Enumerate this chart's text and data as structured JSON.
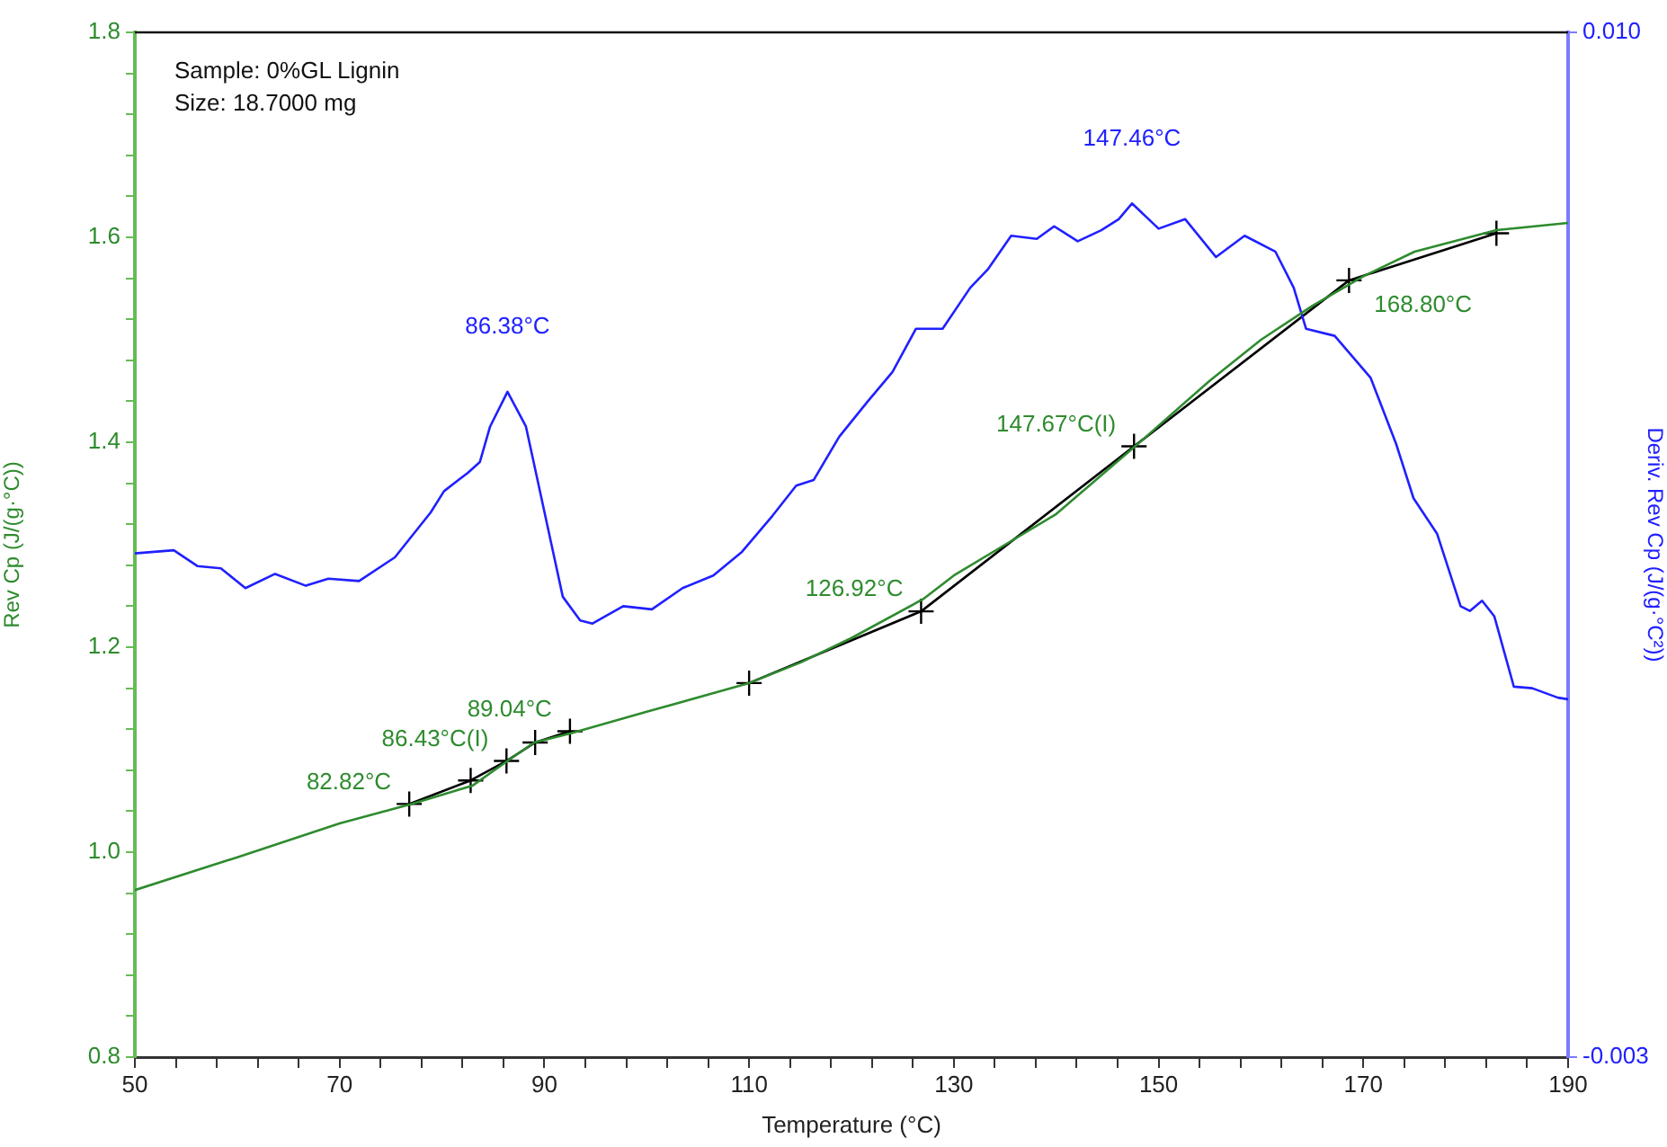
{
  "chart_data": {
    "type": "line",
    "xlabel": "Temperature (°C)",
    "ylabel": "Rev Cp (J/(g·°C))",
    "y2label": "Deriv. Rev Cp (J/(g·°C²))",
    "xlim": [
      50,
      190
    ],
    "xticks": [
      50,
      {
        "value": 54,
        "label": null
      },
      {
        "value": 58,
        "label": null
      },
      {
        "value": 62,
        "label": null
      },
      {
        "value": 66,
        "label": null
      },
      70,
      {
        "value": 74,
        "label": null
      },
      {
        "value": 78,
        "label": null
      },
      {
        "value": 82,
        "label": null
      },
      {
        "value": 86,
        "label": null
      },
      90,
      {
        "value": 94,
        "label": null
      },
      {
        "value": 98,
        "label": null
      },
      {
        "value": 102,
        "label": null
      },
      {
        "value": 106,
        "label": null
      },
      110,
      {
        "value": 114,
        "label": null
      },
      {
        "value": 118,
        "label": null
      },
      {
        "value": 122,
        "label": null
      },
      {
        "value": 126,
        "label": null
      },
      130,
      {
        "value": 134,
        "label": null
      },
      {
        "value": 138,
        "label": null
      },
      {
        "value": 142,
        "label": null
      },
      {
        "value": 146,
        "label": null
      },
      150,
      {
        "value": 154,
        "label": null
      },
      {
        "value": 158,
        "label": null
      },
      {
        "value": 162,
        "label": null
      },
      {
        "value": 166,
        "label": null
      },
      170,
      {
        "value": 174,
        "label": null
      },
      {
        "value": 178,
        "label": null
      },
      {
        "value": 182,
        "label": null
      },
      {
        "value": 186,
        "label": null
      },
      190
    ],
    "ylim": [
      0.8,
      1.8
    ],
    "yticks": [
      0.8,
      {
        "value": 0.84,
        "label": null
      },
      {
        "value": 0.88,
        "label": null
      },
      {
        "value": 0.92,
        "label": null
      },
      {
        "value": 0.96,
        "label": null
      },
      {
        "value": 1,
        "label": "1.0"
      },
      {
        "value": 1.04,
        "label": null
      },
      {
        "value": 1.08,
        "label": null
      },
      {
        "value": 1.12,
        "label": null
      },
      {
        "value": 1.16,
        "label": null
      },
      1.2,
      {
        "value": 1.24,
        "label": null
      },
      {
        "value": 1.28,
        "label": null
      },
      {
        "value": 1.32,
        "label": null
      },
      {
        "value": 1.36,
        "label": null
      },
      1.4,
      {
        "value": 1.44,
        "label": null
      },
      {
        "value": 1.48,
        "label": null
      },
      {
        "value": 1.52,
        "label": null
      },
      {
        "value": 1.56,
        "label": null
      },
      1.6,
      {
        "value": 1.64,
        "label": null
      },
      {
        "value": 1.68,
        "label": null
      },
      {
        "value": 1.72,
        "label": null
      },
      {
        "value": 1.76,
        "label": null
      },
      1.8
    ],
    "y2lim": [
      -0.003,
      0.01
    ],
    "y2ticks": [
      -0.003,
      {
        "value": 0.01,
        "label": "0.010"
      }
    ],
    "grid": false,
    "legend": false,
    "marker": "none",
    "line_style": "solid",
    "series": [
      {
        "color": "#2e8b2e",
        "x": [
          50,
          60,
          70,
          77,
          83,
          86.4,
          89,
          92.6,
          100,
          110,
          115,
          120,
          127,
          130,
          135,
          140,
          147.7,
          155,
          160,
          165,
          170,
          175,
          183,
          190
        ],
        "values": [
          0.963,
          0.995,
          1.028,
          1.047,
          1.065,
          1.089,
          1.107,
          1.116,
          1.137,
          1.165,
          1.185,
          1.209,
          1.247,
          1.27,
          1.3,
          1.33,
          1.396,
          1.46,
          1.5,
          1.533,
          1.562,
          1.586,
          1.607,
          1.614
        ]
      },
      {
        "color": "#2020ff",
        "axis": "y2",
        "x": [
          50,
          53.8,
          56.1,
          58.4,
          60.8,
          63.7,
          66.7,
          68.9,
          71.9,
          75.4,
          78.9,
          80.2,
          82.5,
          83.7,
          84.7,
          86.4,
          88.2,
          90.7,
          91.8,
          93.5,
          94.7,
          97.7,
          100.5,
          103.5,
          106.5,
          109.3,
          112.3,
          114.6,
          116.3,
          118.8,
          121.6,
          124,
          126.3,
          128.9,
          131.6,
          133.3,
          135.6,
          138.1,
          139.8,
          142.1,
          144.4,
          146.1,
          147.4,
          150,
          152.6,
          155.6,
          158.4,
          161.4,
          163.2,
          164.4,
          167.2,
          170.7,
          173.2,
          174.9,
          177.2,
          179.5,
          180.4,
          181.6,
          182.8,
          184.7,
          186.5,
          189,
          190
        ],
        "values": [
          0.00339,
          0.00343,
          0.00323,
          0.0032,
          0.00295,
          0.00313,
          0.00298,
          0.00307,
          0.00304,
          0.00334,
          0.00391,
          0.00418,
          0.00441,
          0.00455,
          0.005,
          0.00544,
          0.005,
          0.0035,
          0.00284,
          0.00254,
          0.0025,
          0.00272,
          0.00268,
          0.00295,
          0.00311,
          0.00341,
          0.00387,
          0.00425,
          0.00432,
          0.00487,
          0.00532,
          0.00569,
          0.00624,
          0.00624,
          0.00676,
          0.00699,
          0.00742,
          0.00738,
          0.00754,
          0.00735,
          0.00749,
          0.00763,
          0.00783,
          0.00751,
          0.00763,
          0.00715,
          0.00742,
          0.00722,
          0.00676,
          0.00624,
          0.00615,
          0.00562,
          0.00478,
          0.00409,
          0.00364,
          0.00272,
          0.00266,
          0.00279,
          0.00259,
          0.0017,
          0.00168,
          0.00156,
          0.00154
        ]
      },
      {
        "color": "#000000",
        "marker": "cross",
        "x": [
          76.8,
          82.8,
          86.3,
          89.1,
          92.5,
          100,
          110,
          126.8,
          147.6,
          168.6,
          183
        ],
        "values": [
          1.047,
          1.07,
          1.089,
          1.107,
          1.118,
          null,
          1.165,
          1.235,
          1.396,
          1.558,
          1.604
        ]
      }
    ],
    "annotations": [
      "Sample: 0%GL Lignin",
      "Size: 18.7000 mg",
      {
        "text": "86.38°C",
        "x": 86.4,
        "y": 1.449
      },
      {
        "text": "147.46°C",
        "x": 147.4,
        "y": 1.633
      },
      {
        "text": "82.82°C",
        "x": 76.8,
        "y": 1.047
      },
      {
        "text": "86.43°C(I)",
        "x": 86.3,
        "y": 1.089
      },
      {
        "text": "89.04°C",
        "x": 92.5,
        "y": 1.118
      },
      {
        "text": "126.92°C",
        "x": 126.8,
        "y": 1.235
      },
      {
        "text": "147.67°C(I)",
        "x": 147.6,
        "y": 1.396
      },
      {
        "text": "168.80°C",
        "x": 168.6,
        "y": 1.558
      }
    ]
  }
}
